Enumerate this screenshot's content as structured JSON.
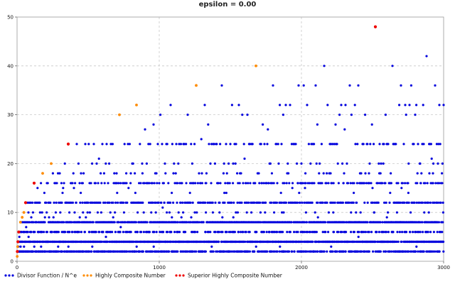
{
  "chart_data": {
    "type": "scatter",
    "title": "epsilon = 0.00",
    "xlim": [
      0,
      3000
    ],
    "ylim": [
      0,
      50
    ],
    "xticks": [
      0,
      1000,
      2000,
      3000
    ],
    "yticks": [
      0,
      10,
      20,
      30,
      40,
      50
    ],
    "grid": true,
    "legend_position": "bottom-left",
    "series": [
      {
        "name": "Divisor Function / N^e",
        "color": "#0000dd",
        "description_rule": "d(n) for n = 1..3000"
      },
      {
        "name": "Highly Composite Number",
        "color": "#ff8c00",
        "x": [
          1,
          2,
          4,
          6,
          12,
          24,
          36,
          48,
          60,
          120,
          180,
          240,
          360,
          720,
          840,
          1260,
          1680,
          2520
        ],
        "y": [
          1,
          2,
          3,
          4,
          6,
          8,
          9,
          10,
          12,
          16,
          18,
          20,
          24,
          30,
          32,
          36,
          40,
          48
        ]
      },
      {
        "name": "Superior Highly Composite Number",
        "color": "#ee0000",
        "x": [
          2,
          6,
          12,
          60,
          120,
          360,
          2520
        ],
        "y": [
          2,
          4,
          6,
          12,
          16,
          24,
          48
        ]
      }
    ]
  }
}
